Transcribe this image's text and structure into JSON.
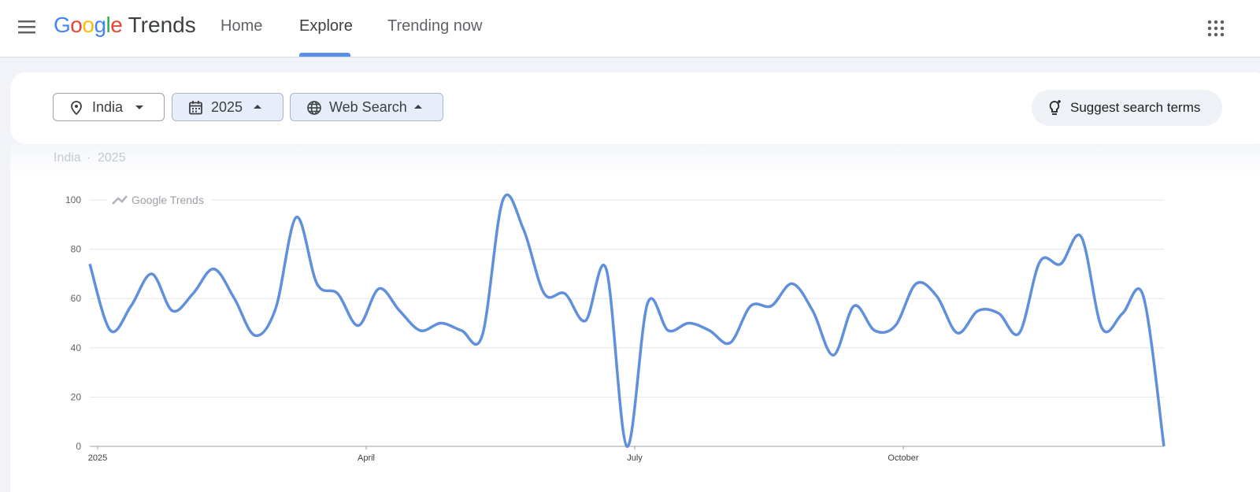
{
  "header": {
    "logo": "Google",
    "product": "Trends",
    "nav": [
      "Home",
      "Explore",
      "Trending now"
    ],
    "active_nav": 1
  },
  "filters": {
    "location": "India",
    "period": "2025",
    "property": "Web Search"
  },
  "suggest": "Suggest search terms",
  "summary": [
    "India",
    "2025"
  ],
  "chart_data": {
    "type": "line",
    "watermark": "Google Trends",
    "color": "#6090db",
    "categories": [
      "2025",
      null,
      null,
      null,
      null,
      null,
      null,
      null,
      null,
      null,
      null,
      null,
      null,
      "April",
      null,
      null,
      null,
      null,
      null,
      null,
      null,
      null,
      null,
      null,
      null,
      null,
      "July",
      null,
      null,
      null,
      null,
      null,
      null,
      null,
      null,
      null,
      null,
      null,
      null,
      "October",
      null,
      null,
      null,
      null,
      null,
      null,
      null,
      null,
      null,
      null,
      null,
      null,
      null
    ],
    "values": [
      74,
      47,
      57,
      70,
      55,
      62,
      72,
      60,
      45,
      56,
      93,
      66,
      62,
      49,
      64,
      55,
      47,
      50,
      47,
      45,
      100,
      88,
      62,
      62,
      51,
      72,
      0,
      58,
      47,
      50,
      47,
      42,
      57,
      57,
      66,
      55,
      37,
      57,
      47,
      49,
      66,
      61,
      46,
      55,
      54,
      46,
      75,
      74,
      85,
      48,
      54,
      61,
      0
    ],
    "ylim": [
      0,
      100
    ],
    "yticks": [
      0,
      20,
      40,
      60,
      80,
      100
    ],
    "grid": true
  }
}
